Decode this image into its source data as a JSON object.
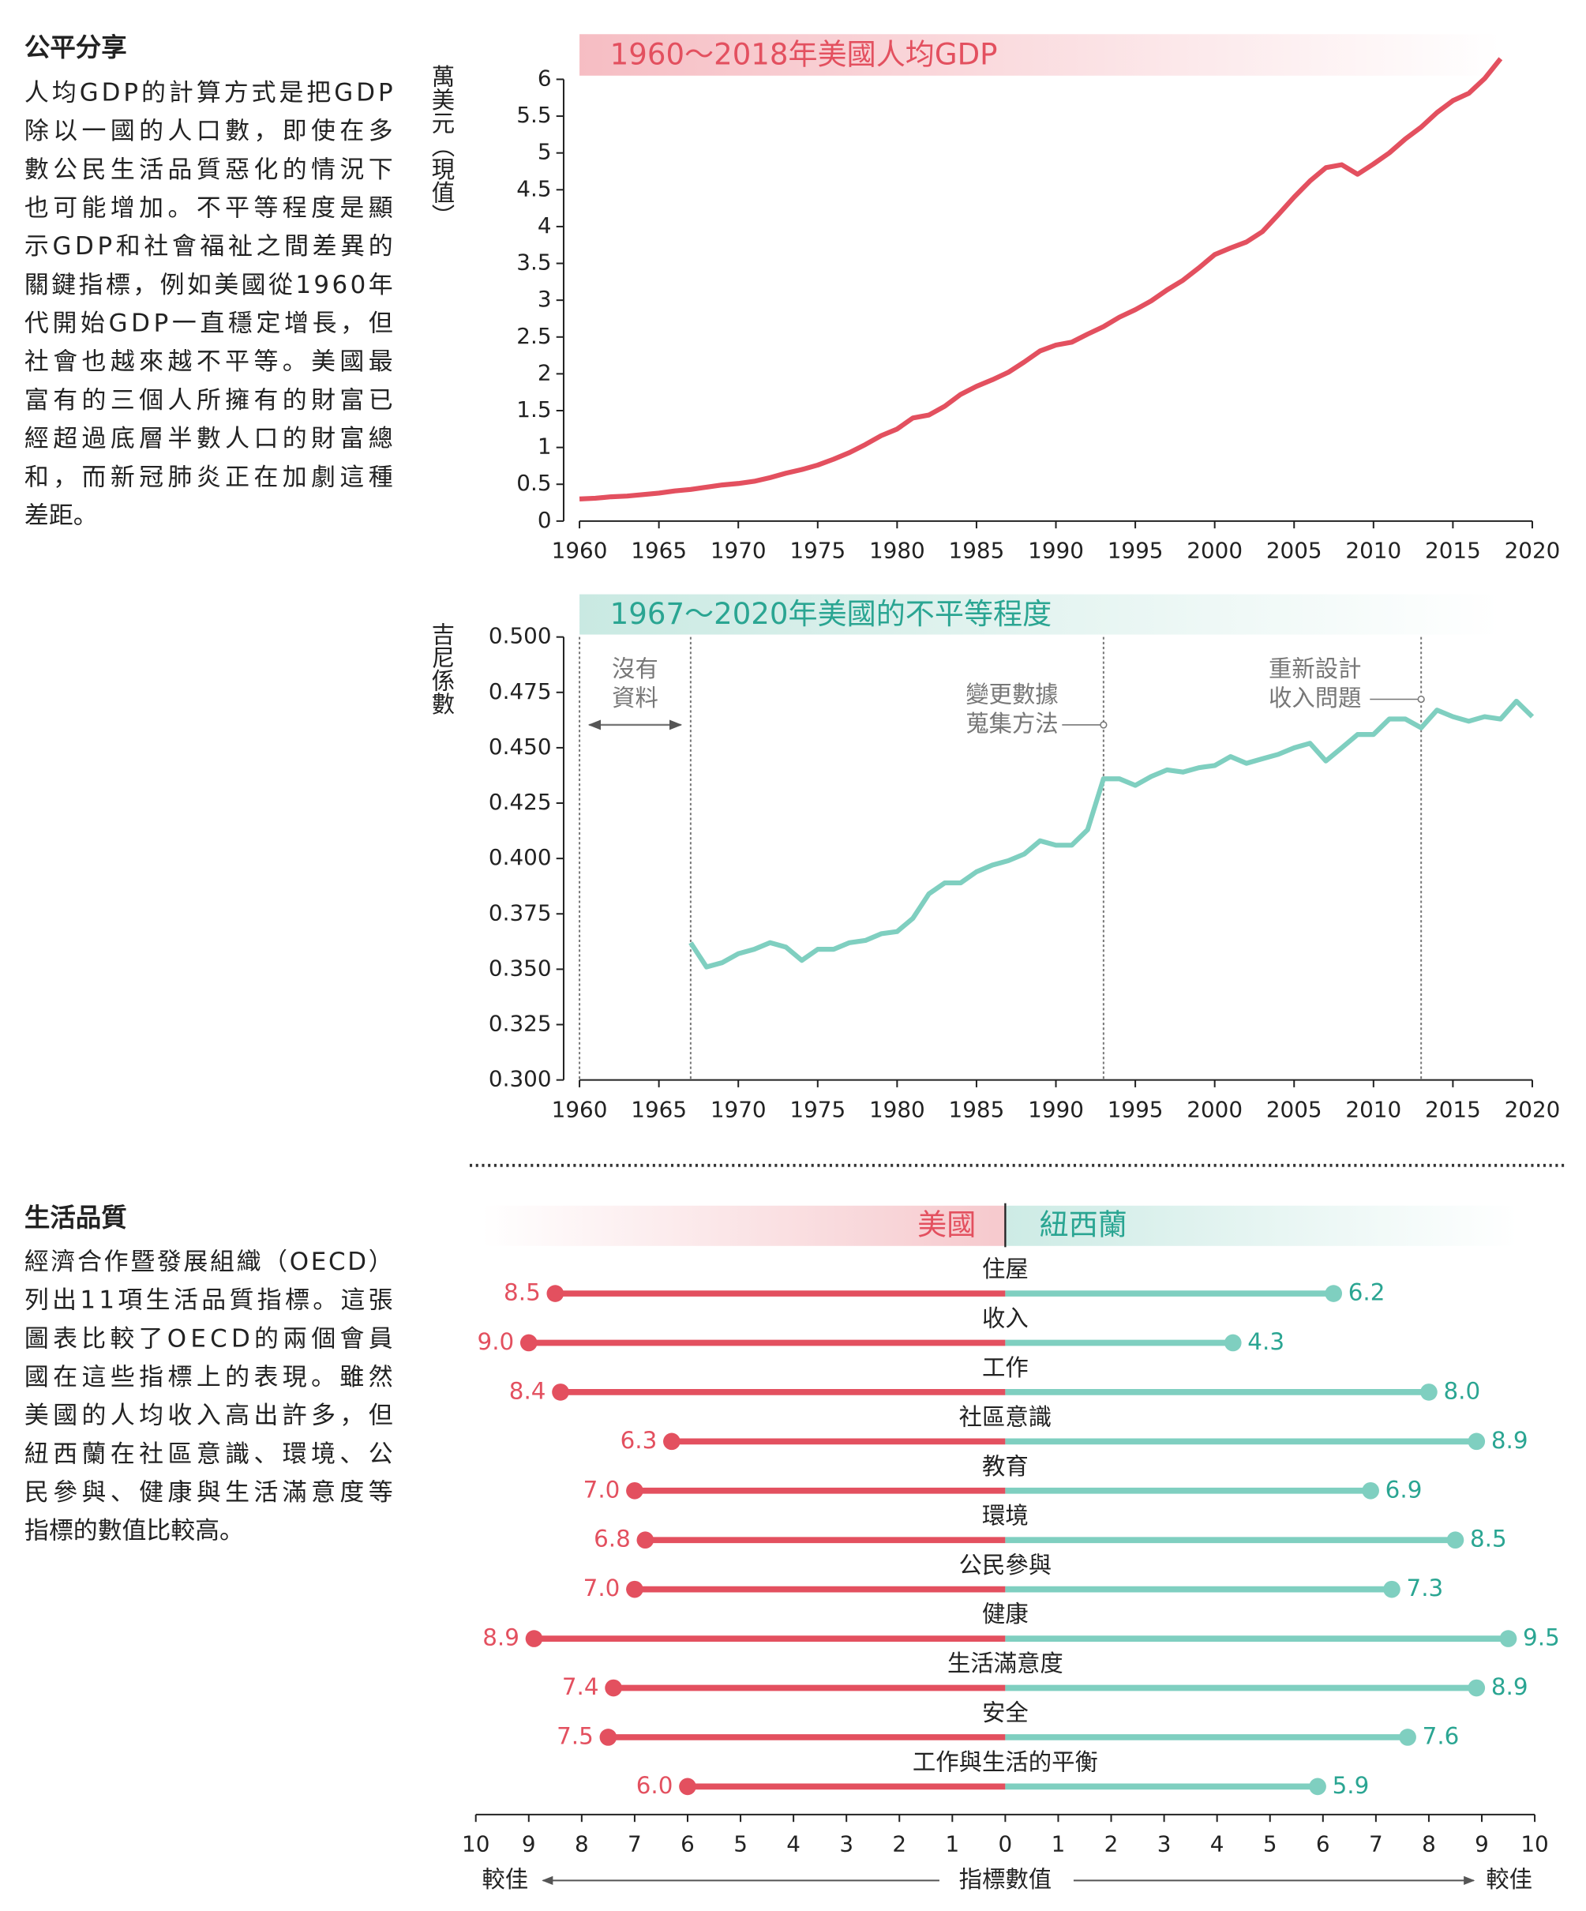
{
  "text_blocks": [
    {
      "title": "公平分享",
      "lines": [
        "人均GDP的計算方式是把GDP",
        "除以一國的人口數，即使在多",
        "數公民生活品質惡化的情況下",
        "也可能增加。不平等程度是顯",
        "示GDP和社會福祉之間差異的",
        "關鍵指標，例如美國從1960年",
        "代開始GDP一直穩定增長，但",
        "社會也越來越不平等。美國最",
        "富有的三個人所擁有的財富已",
        "經超過底層半數人口的財富總",
        "和，而新冠肺炎正在加劇這種",
        "差距。"
      ]
    },
    {
      "title": "生活品質",
      "lines": [
        "經濟合作暨發展組織（OECD）",
        "列出11項生活品質指標。這張",
        "圖表比較了OECD的兩個會員",
        "國在這些指標上的表現。雖然",
        "美國的人均收入高出許多，但",
        "紐西蘭在社區意識、環境、公",
        "民參與、健康與生活滿意度等",
        "指標的數值比較高。"
      ]
    }
  ],
  "chart_data": [
    {
      "type": "line",
      "title": "1960～2018年美國人均GDP",
      "y_label": "萬美元（現值）",
      "color": "#e3505f",
      "x": [
        1960,
        1961,
        1962,
        1963,
        1964,
        1965,
        1966,
        1967,
        1968,
        1969,
        1970,
        1971,
        1972,
        1973,
        1974,
        1975,
        1976,
        1977,
        1978,
        1979,
        1980,
        1981,
        1982,
        1983,
        1984,
        1985,
        1986,
        1987,
        1988,
        1989,
        1990,
        1991,
        1992,
        1993,
        1994,
        1995,
        1996,
        1997,
        1998,
        1999,
        2000,
        2001,
        2002,
        2003,
        2004,
        2005,
        2006,
        2007,
        2008,
        2009,
        2010,
        2011,
        2012,
        2013,
        2014,
        2015,
        2016,
        2017,
        2018
      ],
      "values": [
        0.3,
        0.31,
        0.33,
        0.34,
        0.36,
        0.38,
        0.41,
        0.43,
        0.46,
        0.49,
        0.51,
        0.54,
        0.59,
        0.65,
        0.7,
        0.76,
        0.84,
        0.93,
        1.04,
        1.16,
        1.25,
        1.4,
        1.44,
        1.56,
        1.72,
        1.83,
        1.92,
        2.02,
        2.16,
        2.31,
        2.39,
        2.43,
        2.54,
        2.64,
        2.77,
        2.87,
        2.99,
        3.14,
        3.27,
        3.44,
        3.62,
        3.71,
        3.79,
        3.93,
        4.16,
        4.4,
        4.62,
        4.8,
        4.84,
        4.71,
        4.85,
        5.0,
        5.19,
        5.35,
        5.55,
        5.71,
        5.81,
        6.01,
        6.28
      ],
      "xlim": [
        1960,
        2020
      ],
      "xticks": [
        1960,
        1965,
        1970,
        1975,
        1980,
        1985,
        1990,
        1995,
        2000,
        2005,
        2010,
        2015,
        2020
      ],
      "ylim": [
        0,
        6
      ],
      "yticks": [
        0,
        0.5,
        1,
        1.5,
        2,
        2.5,
        3,
        3.5,
        4,
        4.5,
        5,
        5.5,
        6
      ]
    },
    {
      "type": "line",
      "title": "1967～2020年美國的不平等程度",
      "y_label": "吉尼係數",
      "color": "#7fcfc0",
      "x": [
        1967,
        1968,
        1969,
        1970,
        1971,
        1972,
        1973,
        1974,
        1975,
        1976,
        1977,
        1978,
        1979,
        1980,
        1981,
        1982,
        1983,
        1984,
        1985,
        1986,
        1987,
        1988,
        1989,
        1990,
        1991,
        1992,
        1993,
        1994,
        1995,
        1996,
        1997,
        1998,
        1999,
        2000,
        2001,
        2002,
        2003,
        2004,
        2005,
        2006,
        2007,
        2008,
        2009,
        2010,
        2011,
        2012,
        2013,
        2014,
        2015,
        2016,
        2017,
        2018,
        2019,
        2020
      ],
      "values": [
        0.362,
        0.351,
        0.353,
        0.357,
        0.359,
        0.362,
        0.36,
        0.354,
        0.359,
        0.359,
        0.362,
        0.363,
        0.366,
        0.367,
        0.373,
        0.384,
        0.389,
        0.389,
        0.394,
        0.397,
        0.399,
        0.402,
        0.408,
        0.406,
        0.406,
        0.413,
        0.436,
        0.436,
        0.433,
        0.437,
        0.44,
        0.439,
        0.441,
        0.442,
        0.446,
        0.443,
        0.445,
        0.447,
        0.45,
        0.452,
        0.444,
        0.45,
        0.456,
        0.456,
        0.463,
        0.463,
        0.459,
        0.467,
        0.464,
        0.462,
        0.464,
        0.463,
        0.471,
        0.464
      ],
      "xlim": [
        1960,
        2020
      ],
      "xticks": [
        1960,
        1965,
        1970,
        1975,
        1980,
        1985,
        1990,
        1995,
        2000,
        2005,
        2010,
        2015,
        2020
      ],
      "ylim": [
        0.3,
        0.5
      ],
      "yticks": [
        {
          "value": 0.3,
          "label": "0.300"
        },
        {
          "value": 0.325,
          "label": "0.325"
        },
        {
          "value": 0.35,
          "label": "0.350"
        },
        {
          "value": 0.375,
          "label": "0.375"
        },
        {
          "value": 0.4,
          "label": "0.400"
        },
        {
          "value": 0.425,
          "label": "0.425"
        },
        {
          "value": 0.45,
          "label": "0.450"
        },
        {
          "value": 0.475,
          "label": "0.475"
        },
        {
          "value": 0.5,
          "label": "0.500"
        }
      ],
      "dividers": [
        1960,
        1967,
        1993,
        2013
      ],
      "annotations": [
        {
          "lines": [
            "沒有",
            "資料"
          ]
        },
        {
          "lines": [
            "變更數據",
            "蒐集方法"
          ]
        },
        {
          "lines": [
            "重新設計",
            "收入問題"
          ]
        }
      ]
    },
    {
      "type": "dumbbell",
      "categories": [
        "住屋",
        "收入",
        "工作",
        "社區意識",
        "教育",
        "環境",
        "公民參與",
        "健康",
        "生活滿意度",
        "安全",
        "工作與生活的平衡"
      ],
      "series": [
        {
          "name": "美國",
          "color": "#e3505f",
          "values": [
            8.5,
            9.0,
            8.4,
            6.3,
            7.0,
            6.8,
            7.0,
            8.9,
            7.4,
            7.5,
            6.0
          ],
          "value_labels": [
            "8.5",
            "9.0",
            "8.4",
            "6.3",
            "7.0",
            "6.8",
            "7.0",
            "8.9",
            "7.4",
            "7.5",
            "6.0"
          ]
        },
        {
          "name": "紐西蘭",
          "color": "#7fcfc0",
          "values": [
            6.2,
            4.3,
            8.0,
            8.9,
            6.9,
            8.5,
            7.3,
            9.5,
            8.9,
            7.6,
            5.9
          ],
          "value_labels": [
            "6.2",
            "4.3",
            "8.0",
            "8.9",
            "6.9",
            "8.5",
            "7.3",
            "9.5",
            "8.9",
            "7.6",
            "5.9"
          ]
        }
      ],
      "xlim": [
        0,
        10
      ],
      "xticks": [
        0,
        1,
        2,
        3,
        4,
        5,
        6,
        7,
        8,
        9,
        10
      ],
      "x_label": "指標數值",
      "better_label": "較佳"
    }
  ]
}
